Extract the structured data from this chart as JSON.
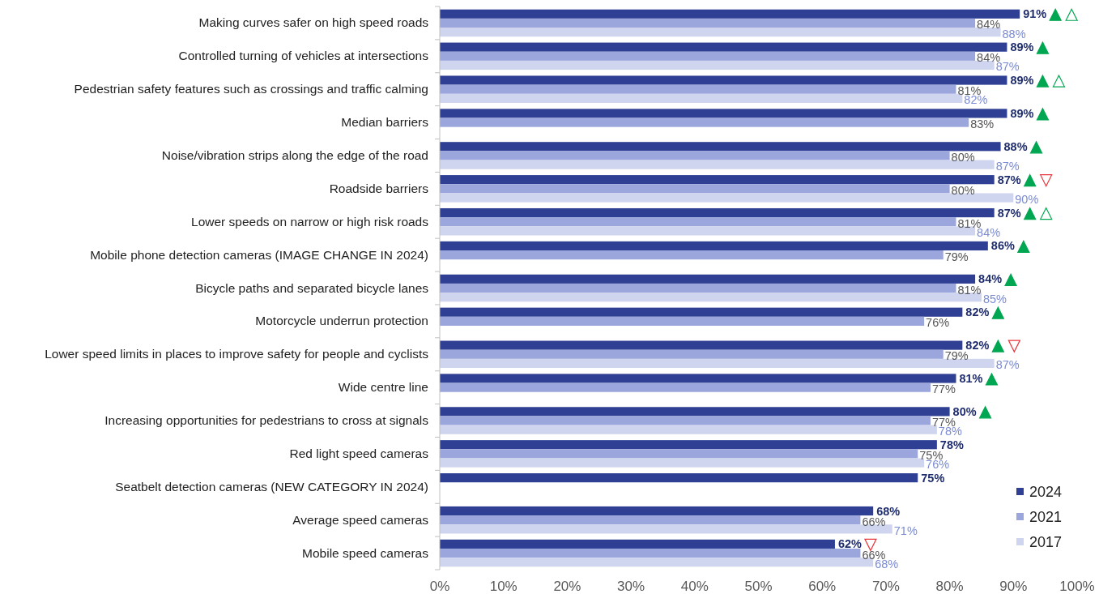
{
  "chart_data": {
    "type": "bar",
    "orientation": "horizontal",
    "categories": [
      "Making curves safer on high speed roads",
      "Controlled turning of vehicles at intersections",
      "Pedestrian safety features such as crossings and traffic calming",
      "Median barriers",
      "Noise/vibration strips along the edge of the road",
      "Roadside barriers",
      "Lower speeds on narrow or high risk roads",
      "Mobile phone detection cameras (IMAGE CHANGE IN 2024)",
      "Bicycle paths and separated bicycle lanes",
      "Motorcycle underrun protection",
      "Lower speed limits in places to improve safety for people and cyclists",
      "Wide centre line",
      "Increasing opportunities for pedestrians to cross at signals",
      "Red light speed cameras",
      "Seatbelt detection cameras (NEW CATEGORY IN 2024)",
      "Average speed cameras",
      "Mobile speed cameras"
    ],
    "series": [
      {
        "name": "2024",
        "color": "#2e3f94",
        "values": [
          91,
          89,
          89,
          89,
          88,
          87,
          87,
          86,
          84,
          82,
          82,
          81,
          80,
          78,
          75,
          68,
          62
        ],
        "value_labels": [
          "91%",
          "89%",
          "89%",
          "89%",
          "88%",
          "87%",
          "87%",
          "86%",
          "84%",
          "82%",
          "82%",
          "81%",
          "80%",
          "78%",
          "75%",
          "68%",
          "62%"
        ]
      },
      {
        "name": "2021",
        "color": "#9ba6dc",
        "values": [
          84,
          84,
          81,
          83,
          80,
          80,
          81,
          79,
          81,
          76,
          79,
          77,
          77,
          75,
          null,
          66,
          66
        ],
        "value_labels": [
          "84%",
          "84%",
          "81%",
          "83%",
          "80%",
          "80%",
          "81%",
          "79%",
          "81%",
          "76%",
          "79%",
          "77%",
          "77%",
          "75%",
          null,
          "66%",
          "66%"
        ]
      },
      {
        "name": "2017",
        "color": "#d0d5ef",
        "values": [
          88,
          87,
          82,
          null,
          87,
          90,
          84,
          null,
          85,
          null,
          87,
          null,
          78,
          76,
          null,
          71,
          68
        ],
        "value_labels": [
          "88%",
          "87%",
          "82%",
          null,
          "87%",
          "90%",
          "84%",
          null,
          "85%",
          null,
          "87%",
          null,
          "78%",
          "76%",
          null,
          "71%",
          "68%"
        ]
      }
    ],
    "xlim": [
      0,
      100
    ],
    "xticks": [
      {
        "value": 0,
        "label": "0%"
      },
      {
        "value": 10,
        "label": "10%"
      },
      {
        "value": 20,
        "label": "20%"
      },
      {
        "value": 30,
        "label": "30%"
      },
      {
        "value": 40,
        "label": "40%"
      },
      {
        "value": 50,
        "label": "50%"
      },
      {
        "value": 60,
        "label": "60%"
      },
      {
        "value": 70,
        "label": "70%"
      },
      {
        "value": 80,
        "label": "80%"
      },
      {
        "value": 90,
        "label": "90%"
      },
      {
        "value": 100,
        "label": "100%"
      }
    ],
    "grid": false,
    "legend": "bottom right"
  }
}
